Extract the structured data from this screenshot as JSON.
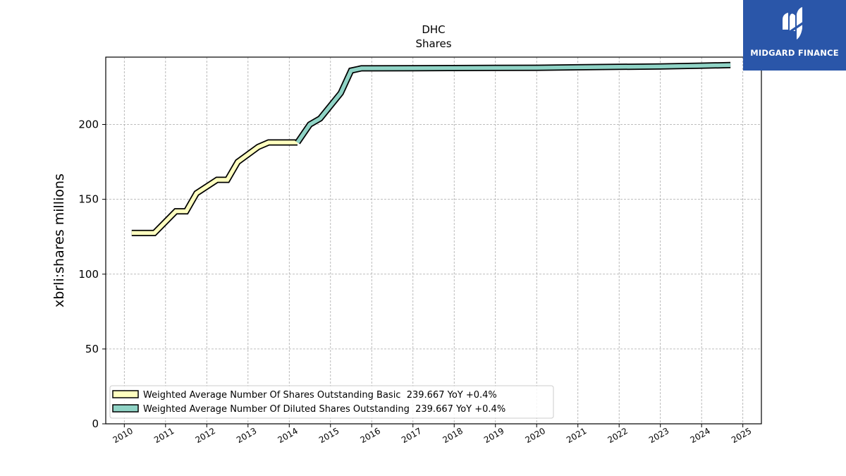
{
  "logo": {
    "text": "MIDGARD FINANCE",
    "color": "#2a56a9"
  },
  "chart_data": {
    "type": "line",
    "title": "DHC",
    "subtitle": "Shares",
    "xlabel": "",
    "ylabel": "xbrli:shares millions",
    "xlim": [
      2009.55,
      2025.45
    ],
    "ylim": [
      0,
      245
    ],
    "yticks": [
      0,
      50,
      100,
      150,
      200
    ],
    "xticks": [
      "2010",
      "2011",
      "2012",
      "2013",
      "2014",
      "2015",
      "2016",
      "2017",
      "2018",
      "2019",
      "2020",
      "2021",
      "2022",
      "2023",
      "2024",
      "2025"
    ],
    "grid": true,
    "legend_position": "lower-left",
    "series": [
      {
        "name": "Weighted Average Number Of Shares Outstanding Basic  239.667 YoY +0.4%",
        "color": "#ffffbf",
        "x": [
          2010.18,
          2010.73,
          2011.25,
          2011.5,
          2011.75,
          2012.25,
          2012.5,
          2012.75,
          2013.25,
          2013.5,
          2013.75,
          2014.0,
          2014.2
        ],
        "y": [
          127.5,
          127.5,
          142,
          142,
          154,
          163,
          163,
          175,
          185,
          188,
          188,
          188,
          188
        ]
      },
      {
        "name": "Weighted Average Number Of Diluted Shares Outstanding  239.667 YoY +0.4%",
        "color": "#8fd3c5",
        "x": [
          2014.2,
          2014.5,
          2014.75,
          2015.25,
          2015.5,
          2015.75,
          2016.0,
          2017.0,
          2018.0,
          2019.0,
          2020.0,
          2021.0,
          2022.0,
          2023.0,
          2024.0,
          2024.7
        ],
        "y": [
          188,
          200,
          204,
          221,
          236,
          237.5,
          237.5,
          237.6,
          237.7,
          237.8,
          237.9,
          238.2,
          238.5,
          238.8,
          239.3,
          239.67
        ]
      }
    ]
  }
}
